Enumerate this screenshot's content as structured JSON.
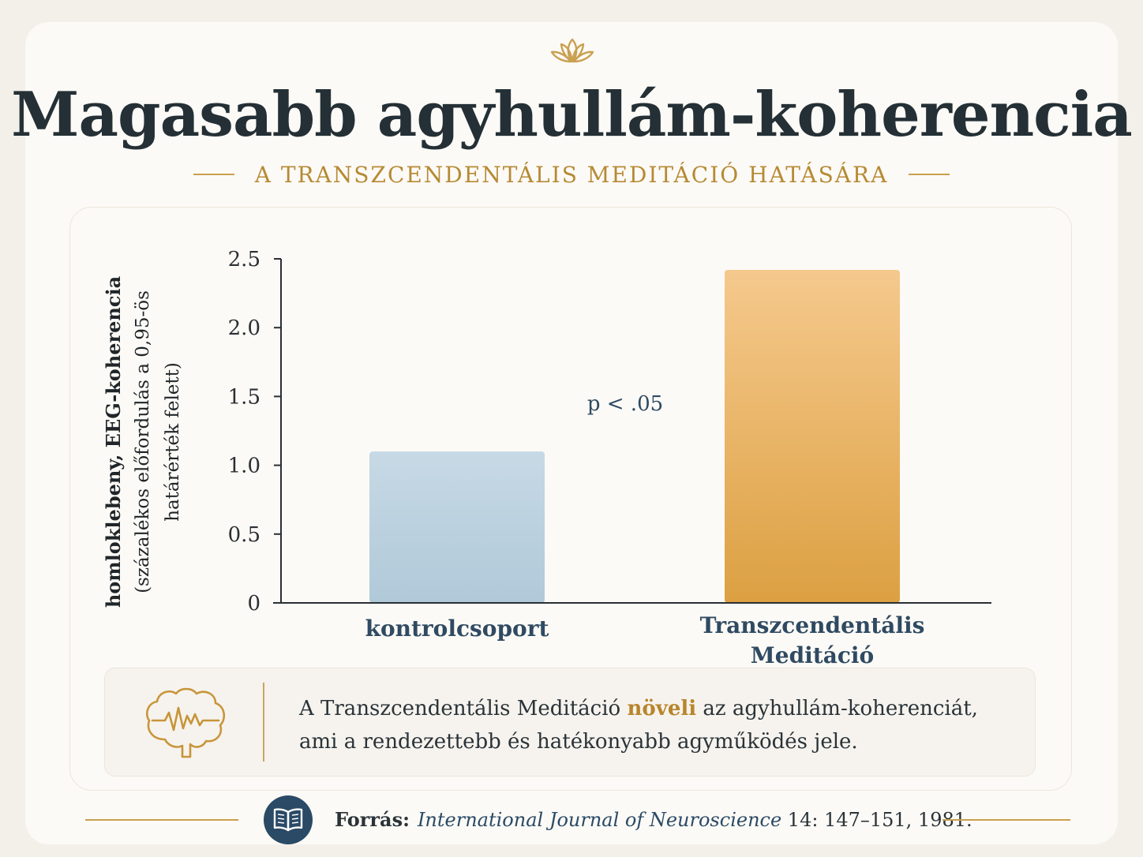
{
  "header": {
    "title": "Magasabb agyhullám-koherencia",
    "subtitle": "A TRANSZCENDENTÁLIS MEDITÁCIÓ HATÁSÁRA"
  },
  "chart_data": {
    "type": "bar",
    "categories": [
      "kontrolcsoport",
      "Transzcendentális Meditáció"
    ],
    "category_lines": [
      [
        "kontrolcsoport"
      ],
      [
        "Transzcendentális",
        "Meditáció"
      ]
    ],
    "values": [
      1.1,
      2.42
    ],
    "bar_colors": [
      [
        "#c7d9e5",
        "#b0c9d9"
      ],
      [
        "#f5c98d",
        "#dca042"
      ]
    ],
    "ylabel": "homloklebeny, EEG-koherencia",
    "ylabel_sub": [
      "(százalékos előfordulás a 0,95-ös",
      "határérték felett)"
    ],
    "ylim": [
      0,
      2.5
    ],
    "yticks": [
      0,
      0.5,
      1.0,
      1.5,
      2.0,
      2.5
    ],
    "ytick_labels": [
      "0",
      "0.5",
      "1.0",
      "1.5",
      "2.0",
      "2.5"
    ],
    "annotation": "p < .05",
    "grid": false
  },
  "note": {
    "prefix": "A Transzcendentális Meditáció ",
    "highlight": "növeli",
    "suffix": " az agyhullám-koherenciát,",
    "line2": "ami a rendezettebb és hatékonyabb agyműködés jele."
  },
  "source": {
    "label": "Forrás:",
    "journal": "International Journal of Neuroscience",
    "details": " 14: 147–151, 1981."
  },
  "colors": {
    "accent": "#c8a04f",
    "title": "#243036",
    "navy": "#2a4a66",
    "category_label": "#2f4a62"
  },
  "icons": [
    "lotus-icon",
    "brain-icon",
    "book-icon"
  ]
}
